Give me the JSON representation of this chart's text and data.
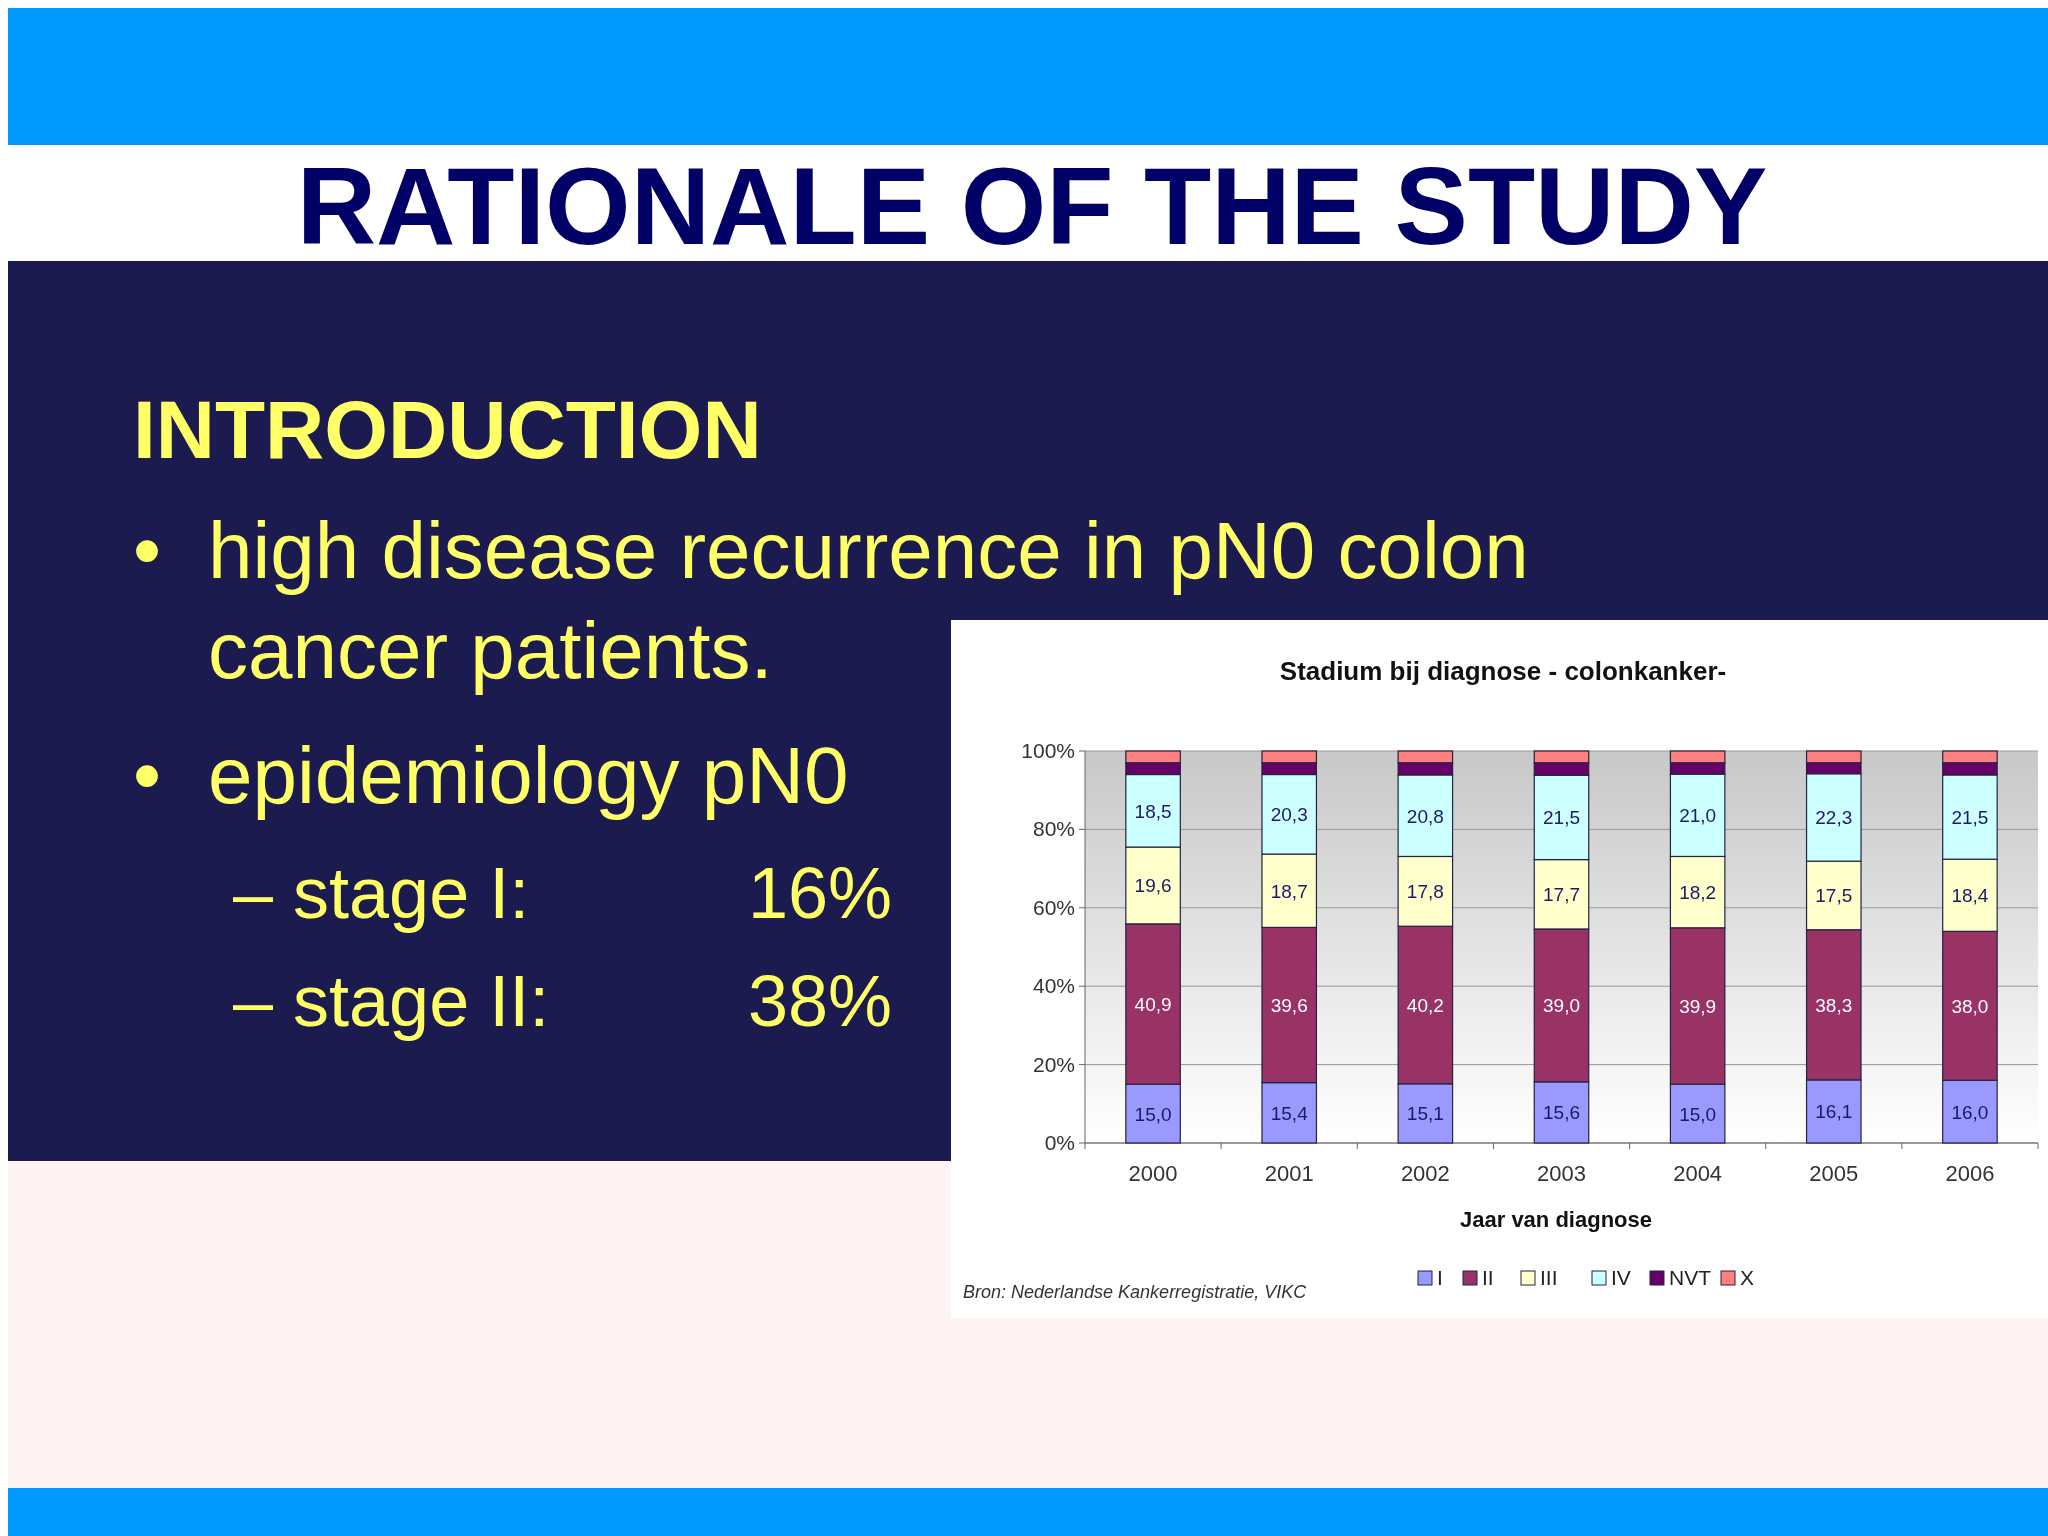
{
  "chart_data": {
    "type": "bar",
    "stacked": true,
    "title": "Stadium bij diagnose - colonkanker-",
    "xlabel": "Jaar van diagnose",
    "categories": [
      "2000",
      "2001",
      "2002",
      "2003",
      "2004",
      "2005",
      "2006"
    ],
    "series": [
      {
        "name": "I",
        "color": "#9999ff",
        "values": [
          15.0,
          15.4,
          15.1,
          15.6,
          15.0,
          16.1,
          16.0
        ],
        "value_labels": [
          "15,0",
          "15,4",
          "15,1",
          "15,6",
          "15,0",
          "16,1",
          "16,0"
        ]
      },
      {
        "name": "II",
        "color": "#993366",
        "values": [
          40.9,
          39.6,
          40.2,
          39.0,
          39.9,
          38.3,
          38.0
        ],
        "value_labels": [
          "40,9",
          "39,6",
          "40,2",
          "39,0",
          "39,9",
          "38,3",
          "38,0"
        ]
      },
      {
        "name": "III",
        "color": "#ffffcc",
        "values": [
          19.6,
          18.7,
          17.8,
          17.7,
          18.2,
          17.5,
          18.4
        ],
        "value_labels": [
          "19,6",
          "18,7",
          "17,8",
          "17,7",
          "18,2",
          "17,5",
          "18,4"
        ]
      },
      {
        "name": "IV",
        "color": "#ccffff",
        "values": [
          18.5,
          20.3,
          20.8,
          21.5,
          21.0,
          22.3,
          21.5
        ],
        "value_labels": [
          "18,5",
          "20,3",
          "20,8",
          "21,5",
          "21,0",
          "22,3",
          "21,5"
        ]
      },
      {
        "name": "NVT",
        "color": "#660066",
        "values": [
          3.0,
          3.0,
          3.1,
          3.2,
          2.9,
          2.8,
          3.1
        ]
      },
      {
        "name": "X",
        "color": "#ff8080",
        "values": [
          3.0,
          3.0,
          3.0,
          3.0,
          3.0,
          3.0,
          3.0
        ]
      }
    ],
    "ylim": [
      0,
      100
    ],
    "yticks": [
      {
        "value": 0,
        "label": "0%"
      },
      {
        "value": 20,
        "label": "20%"
      },
      {
        "value": 40,
        "label": "40%"
      },
      {
        "value": 60,
        "label": "60%"
      },
      {
        "value": 80,
        "label": "80%"
      },
      {
        "value": 100,
        "label": "100%"
      }
    ],
    "grid": "y",
    "legend": "bottom",
    "annotations": [
      "Bron: Nederlandse Kankerregistratie, VIKC",
      "RATIONALE OF THE STUDY",
      "INTRODUCTION",
      "• high disease recurrence in pN0 colon cancer patients.",
      "• epidemiology pN0",
      "– stage I:",
      "16%",
      "– stage II:",
      "38%"
    ]
  }
}
